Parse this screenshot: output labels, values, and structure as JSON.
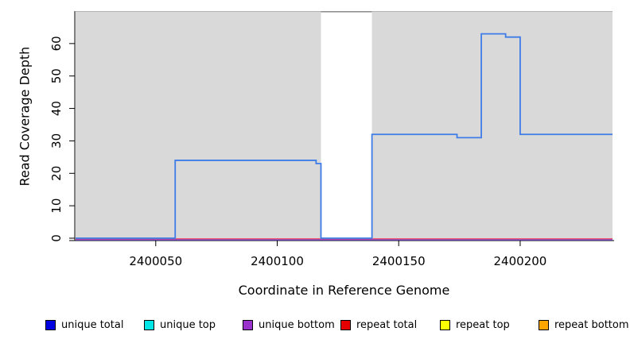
{
  "figure": {
    "x_axis": {
      "label": "Coordinate in Reference Genome"
    },
    "y_axis": {
      "label": "Read Coverage Depth"
    }
  },
  "legend": {
    "items": [
      {
        "label": "unique total",
        "color": "#0000e0"
      },
      {
        "label": "unique top",
        "color": "#00e6e6"
      },
      {
        "label": "unique bottom",
        "color": "#9933cc"
      },
      {
        "label": "repeat total",
        "color": "#e60000"
      },
      {
        "label": "repeat top",
        "color": "#ffff00"
      },
      {
        "label": "repeat bottom",
        "color": "#ffa500"
      }
    ]
  },
  "chart_data": {
    "type": "line",
    "subtype": "step-coverage",
    "title": "",
    "xlabel": "Coordinate in Reference Genome",
    "ylabel": "Read Coverage Depth",
    "xlim": [
      2400017,
      2400238
    ],
    "ylim": [
      0,
      70
    ],
    "x_ticks": [
      2400050,
      2400100,
      2400150,
      2400200
    ],
    "y_ticks": [
      0,
      10,
      20,
      30,
      40,
      50,
      60
    ],
    "grid": false,
    "legend_position": "bottom",
    "panel_color": "#d9d9d9",
    "panel_top_border_color": "#b3b3b3",
    "gap_top_border_color": "#8a8a8a",
    "white_gap_x": [
      2400118,
      2400139
    ],
    "series": [
      {
        "name": "unique total",
        "line_color": "#3e7ce8",
        "style": "step",
        "segments": [
          [
            2400017,
            2400058,
            0
          ],
          [
            2400058,
            2400116,
            24
          ],
          [
            2400116,
            2400118,
            23
          ],
          [
            2400118,
            2400139,
            0
          ],
          [
            2400139,
            2400174,
            32
          ],
          [
            2400174,
            2400184,
            31
          ],
          [
            2400184,
            2400194,
            63
          ],
          [
            2400194,
            2400200,
            62
          ],
          [
            2400200,
            2400238,
            32
          ]
        ]
      },
      {
        "name": "unique top",
        "line_color": "#00e6e6",
        "constant_value": 0,
        "zero_line": false
      },
      {
        "name": "unique bottom",
        "line_color": "#7d55e8",
        "constant_value": 0,
        "zero_line": true
      },
      {
        "name": "repeat total",
        "line_color": "#e8435c",
        "constant_value": 0,
        "zero_line": true
      },
      {
        "name": "repeat top",
        "line_color": "#ffff00",
        "constant_value": 0,
        "zero_line": false
      },
      {
        "name": "repeat bottom",
        "line_color": "#ffa500",
        "constant_value": 0,
        "zero_line": false
      }
    ]
  }
}
